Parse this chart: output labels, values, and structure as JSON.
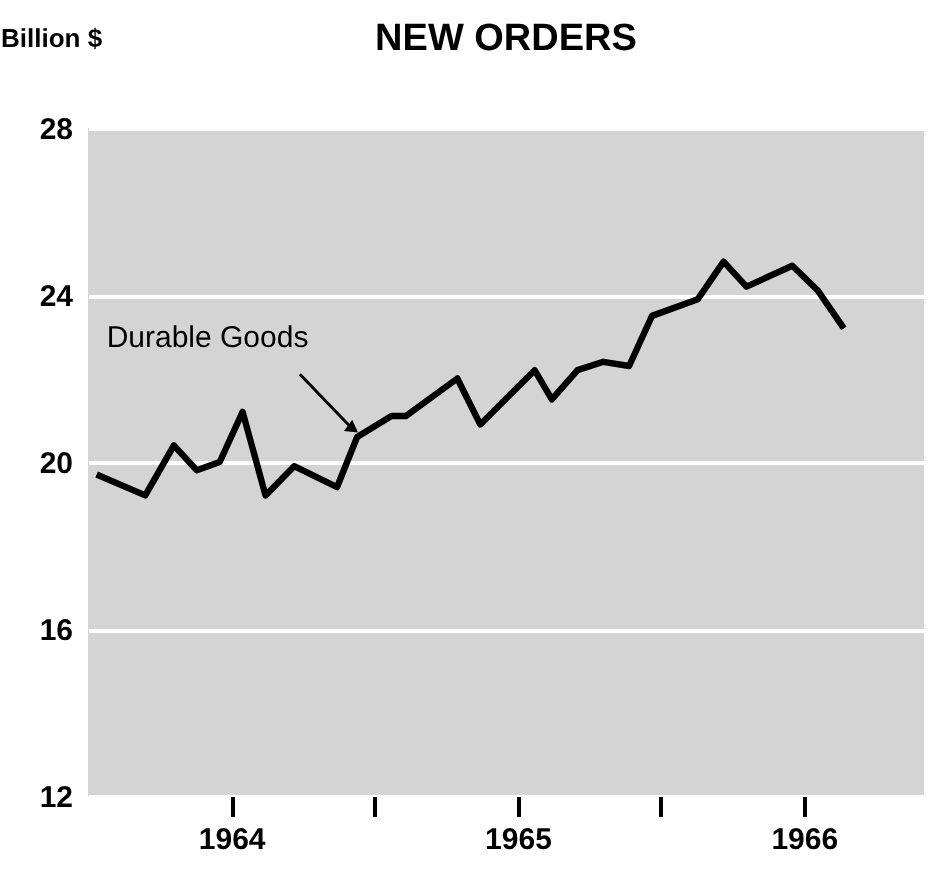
{
  "chart_data": {
    "type": "line",
    "title": "NEW ORDERS",
    "ylabel": "Billion $",
    "x": [
      1964.03,
      1964.2,
      1964.3,
      1964.38,
      1964.46,
      1964.54,
      1964.62,
      1964.72,
      1964.87,
      1964.94,
      1965.06,
      1965.11,
      1965.29,
      1965.37,
      1965.56,
      1965.62,
      1965.71,
      1965.8,
      1965.89,
      1965.97,
      1966.13,
      1966.22,
      1966.3,
      1966.46,
      1966.55,
      1966.64
    ],
    "series": [
      {
        "name": "Durable Goods",
        "color": "#000000",
        "values": [
          19.7,
          19.2,
          20.4,
          19.8,
          20.0,
          21.2,
          19.2,
          19.9,
          19.4,
          20.6,
          21.1,
          21.1,
          22.0,
          20.9,
          22.2,
          21.5,
          22.2,
          22.4,
          22.3,
          23.5,
          23.9,
          24.8,
          24.2,
          24.7,
          24.1,
          23.2
        ]
      }
    ],
    "xlim": [
      1964,
      1966.92
    ],
    "xticks": [
      {
        "value": 1964.5,
        "label": "1964"
      },
      {
        "value": 1965,
        "label": null
      },
      {
        "value": 1965.5,
        "label": "1965"
      },
      {
        "value": 1966,
        "label": null
      },
      {
        "value": 1966.5,
        "label": "1966"
      }
    ],
    "ylim": [
      12,
      28
    ],
    "yticks": [
      12,
      16,
      20,
      24,
      28
    ],
    "grid": "y",
    "legend": false,
    "line_style": "solid",
    "marker": "none"
  }
}
